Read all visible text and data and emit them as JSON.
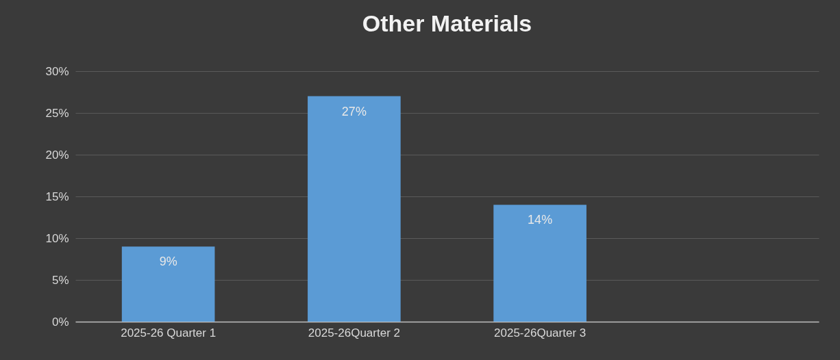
{
  "chart_data": {
    "type": "bar",
    "title": "Other Materials",
    "categories": [
      "2025-26 Quarter 1",
      "2025-26Quarter 2",
      "2025-26Quarter 3",
      null
    ],
    "values": [
      9,
      27,
      14,
      null
    ],
    "value_labels": [
      "9%",
      "27%",
      "14%",
      null
    ],
    "color": "#5b9bd5",
    "ylim": [
      0,
      30
    ],
    "yticks": [
      {
        "value": 0,
        "label": "0%"
      },
      {
        "value": 5,
        "label": "5%"
      },
      {
        "value": 10,
        "label": "10%"
      },
      {
        "value": 15,
        "label": "15%"
      },
      {
        "value": 20,
        "label": "20%"
      },
      {
        "value": 25,
        "label": "25%"
      },
      {
        "value": 30,
        "label": "30%"
      }
    ],
    "grid": "y"
  }
}
